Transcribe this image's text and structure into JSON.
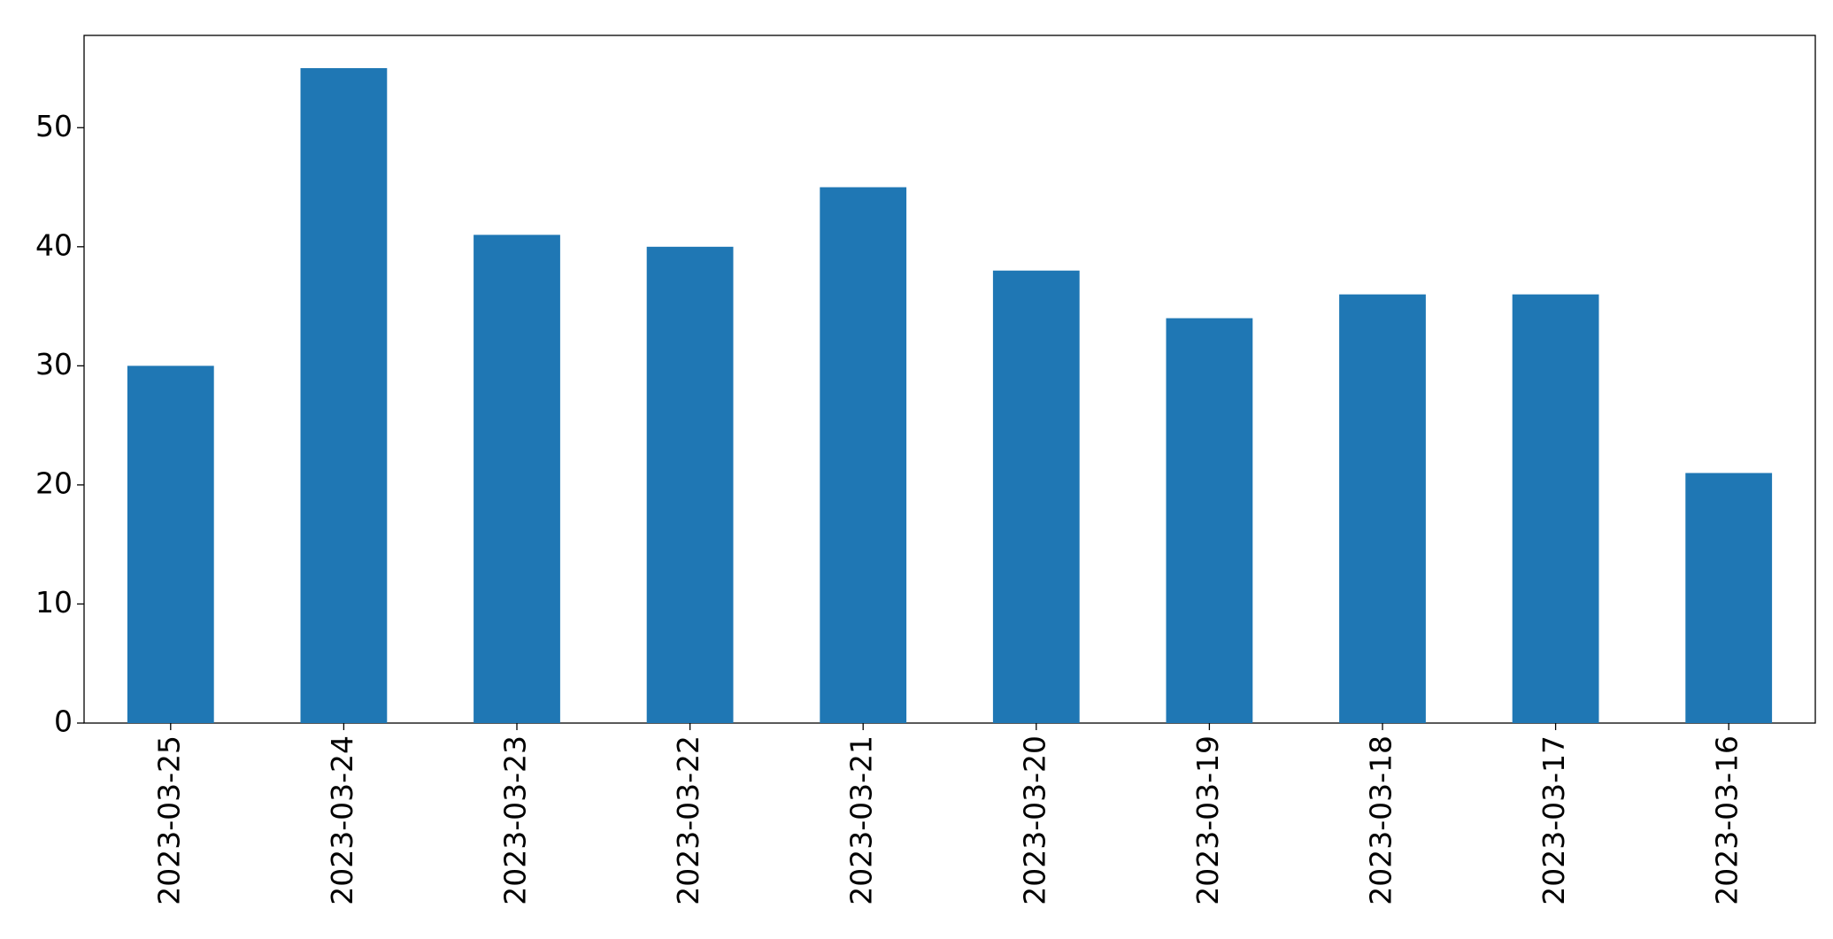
{
  "chart_data": {
    "type": "bar",
    "categories": [
      "2023-03-25",
      "2023-03-24",
      "2023-03-23",
      "2023-03-22",
      "2023-03-21",
      "2023-03-20",
      "2023-03-19",
      "2023-03-18",
      "2023-03-17",
      "2023-03-16"
    ],
    "values": [
      30,
      55,
      41,
      40,
      45,
      38,
      34,
      36,
      36,
      21
    ],
    "color": "#1f77b4",
    "ylim": [
      0,
      57.75
    ],
    "yticks": [
      0,
      10,
      20,
      30,
      40,
      50
    ],
    "grid": false
  }
}
